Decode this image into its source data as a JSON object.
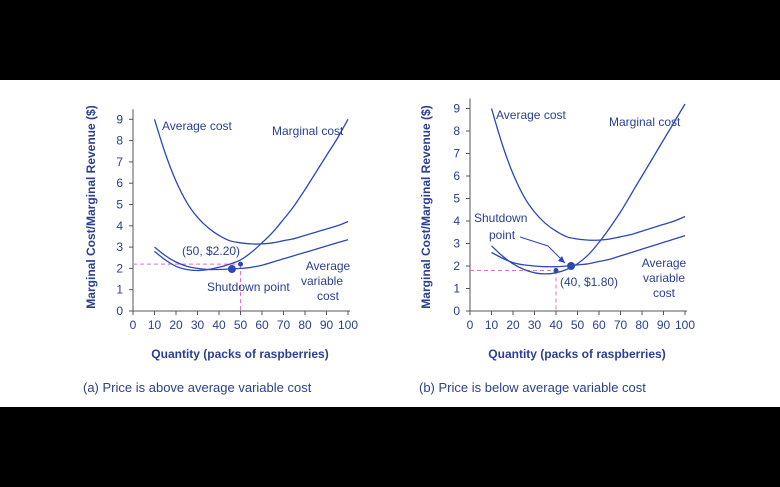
{
  "chart_data": [
    {
      "type": "line",
      "caption": "(a) Price is above average variable cost",
      "xlabel": "Quantity (packs of raspberries)",
      "ylabel": "Marginal Cost/Marginal Revenue ($)",
      "xlim": [
        0,
        100
      ],
      "ylim": [
        0,
        9
      ],
      "xticks": [
        0,
        10,
        20,
        30,
        40,
        50,
        60,
        70,
        80,
        90,
        100
      ],
      "yticks": [
        0,
        1,
        2,
        3,
        4,
        5,
        6,
        7,
        8,
        9
      ],
      "grid": false,
      "series": [
        {
          "name": "Average cost",
          "x": [
            10,
            15,
            20,
            25,
            30,
            35,
            40,
            45,
            50,
            55,
            60,
            65,
            70,
            75,
            80,
            85,
            90,
            95,
            100
          ],
          "y": [
            9.0,
            7.4,
            6.1,
            5.1,
            4.4,
            3.9,
            3.55,
            3.3,
            3.2,
            3.15,
            3.15,
            3.2,
            3.3,
            3.4,
            3.55,
            3.7,
            3.85,
            4.0,
            4.2
          ]
        },
        {
          "name": "Marginal cost",
          "x": [
            10,
            15,
            20,
            25,
            30,
            35,
            40,
            45,
            50,
            55,
            60,
            65,
            70,
            75,
            80,
            85,
            90,
            95,
            100
          ],
          "y": [
            2.8,
            2.4,
            2.1,
            1.95,
            1.9,
            1.95,
            2.05,
            2.2,
            2.4,
            2.75,
            3.2,
            3.7,
            4.3,
            4.95,
            5.7,
            6.5,
            7.3,
            8.1,
            9.0
          ]
        },
        {
          "name": "Average variable cost",
          "x": [
            10,
            15,
            20,
            25,
            30,
            35,
            40,
            45,
            50,
            55,
            60,
            65,
            70,
            75,
            80,
            85,
            90,
            95,
            100
          ],
          "y": [
            3.0,
            2.6,
            2.3,
            2.1,
            2.0,
            1.95,
            1.95,
            1.97,
            2.0,
            2.05,
            2.15,
            2.3,
            2.45,
            2.6,
            2.75,
            2.9,
            3.05,
            3.2,
            3.35
          ]
        }
      ],
      "points": [
        {
          "x": 50,
          "y": 2.2,
          "label": "(50, $2.20)"
        },
        {
          "x": 46,
          "y": 1.97,
          "label": "Shutdown point"
        }
      ],
      "labels": {
        "average_cost": "Average cost",
        "marginal_cost": "Marginal cost",
        "avc_line1": "Average",
        "avc_line2": "variable",
        "avc_line3": "cost",
        "shutdown": "Shutdown point",
        "point_label": "(50, $2.20)"
      },
      "guide": {
        "x": 50,
        "y": 2.2
      }
    },
    {
      "type": "line",
      "caption": "(b) Price is below average variable cost",
      "xlabel": "Quantity (packs of raspberries)",
      "ylabel": "Marginal Cost/Marginal Revenue ($)",
      "xlim": [
        0,
        100
      ],
      "ylim": [
        0,
        9
      ],
      "xticks": [
        0,
        10,
        20,
        30,
        40,
        50,
        60,
        70,
        80,
        90,
        100
      ],
      "yticks": [
        0,
        1,
        2,
        3,
        4,
        5,
        6,
        7,
        8,
        9
      ],
      "grid": false,
      "series": [
        {
          "name": "Average cost",
          "x": [
            10,
            15,
            20,
            25,
            30,
            35,
            40,
            45,
            50,
            55,
            60,
            65,
            70,
            75,
            80,
            85,
            90,
            95,
            100
          ],
          "y": [
            9.0,
            7.4,
            6.1,
            5.1,
            4.4,
            3.9,
            3.55,
            3.3,
            3.2,
            3.15,
            3.15,
            3.2,
            3.3,
            3.4,
            3.55,
            3.7,
            3.85,
            4.0,
            4.2
          ]
        },
        {
          "name": "Marginal cost",
          "x": [
            10,
            15,
            20,
            25,
            30,
            35,
            40,
            45,
            50,
            55,
            60,
            65,
            70,
            75,
            80,
            85,
            90,
            95,
            100
          ],
          "y": [
            2.9,
            2.45,
            2.1,
            1.85,
            1.7,
            1.65,
            1.7,
            1.85,
            2.1,
            2.5,
            3.05,
            3.7,
            4.4,
            5.2,
            6.0,
            6.8,
            7.6,
            8.4,
            9.2
          ]
        },
        {
          "name": "Average variable cost",
          "x": [
            10,
            15,
            20,
            25,
            30,
            35,
            40,
            45,
            50,
            55,
            60,
            65,
            70,
            75,
            80,
            85,
            90,
            95,
            100
          ],
          "y": [
            2.6,
            2.35,
            2.15,
            2.05,
            2.0,
            1.97,
            1.97,
            2.0,
            2.05,
            2.1,
            2.2,
            2.3,
            2.45,
            2.6,
            2.75,
            2.9,
            3.05,
            3.2,
            3.35
          ]
        }
      ],
      "points": [
        {
          "x": 40,
          "y": 1.8,
          "label": "(40, $1.80)"
        },
        {
          "x": 47,
          "y": 2.0,
          "label": "Shutdown point"
        }
      ],
      "labels": {
        "average_cost": "Average cost",
        "marginal_cost": "Marginal cost",
        "avc_line1": "Average",
        "avc_line2": "variable",
        "avc_line3": "cost",
        "shutdown_line1": "Shutdown",
        "shutdown_line2": "point",
        "point_label": "(40, $1.80)"
      },
      "guide": {
        "x": 40,
        "y": 1.8
      }
    }
  ],
  "colors": {
    "curve": "#2d47b8",
    "axis": "#555555",
    "text": "#2a3f8f",
    "guide": "#e070c8",
    "background": "#ffffff",
    "frame": "#000000"
  }
}
